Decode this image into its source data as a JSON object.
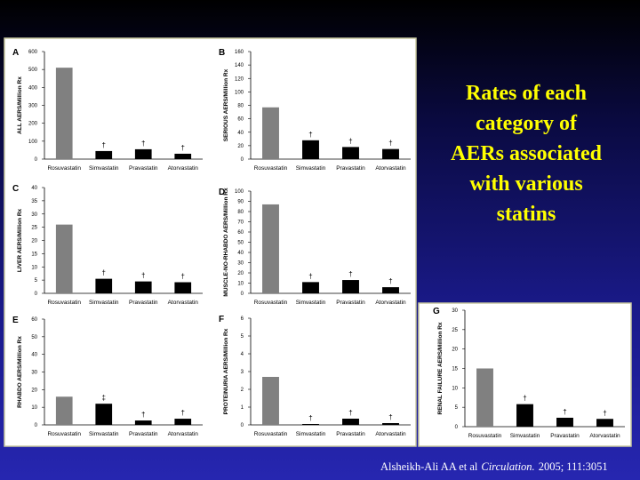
{
  "slide_title": [
    "Rates of each",
    "category of",
    "AERs associated",
    "with various",
    "statins"
  ],
  "citation": [
    "Alsheikh-Ali AA et al",
    "Circulation.",
    "2005; 111:3051"
  ],
  "chart_data": [
    {
      "type": "bar",
      "panel": "A",
      "ylabel": "ALL AERS/Million Rx",
      "categories": [
        "Rosuvastatin",
        "Simvastatin",
        "Pravastatin",
        "Atorvastatin"
      ],
      "values": [
        510,
        45,
        55,
        30
      ],
      "colors": [
        "#808080",
        "#000000",
        "#000000",
        "#000000"
      ],
      "markers": [
        null,
        "†",
        "†",
        "†"
      ],
      "ylim": [
        0,
        600
      ],
      "yticks": [
        0,
        100,
        200,
        300,
        400,
        500,
        600
      ],
      "grid": false
    },
    {
      "type": "bar",
      "panel": "B",
      "ylabel": "SERIOUS AERS/Million Rx",
      "categories": [
        "Rosuvastatin",
        "Simvastatin",
        "Pravastatin",
        "Atorvastatin"
      ],
      "values": [
        77,
        28,
        18,
        15
      ],
      "colors": [
        "#808080",
        "#000000",
        "#000000",
        "#000000"
      ],
      "markers": [
        null,
        "†",
        "†",
        "†"
      ],
      "ylim": [
        0,
        160
      ],
      "yticks": [
        0,
        20,
        40,
        60,
        80,
        100,
        120,
        140,
        160
      ],
      "grid": false
    },
    {
      "type": "bar",
      "panel": "C",
      "ylabel": "LIVER AERS/Million Rx",
      "categories": [
        "Rosuvastatin",
        "Simvastatin",
        "Pravastatin",
        "Atorvastatin"
      ],
      "values": [
        26,
        5.5,
        4.5,
        4.2
      ],
      "colors": [
        "#808080",
        "#000000",
        "#000000",
        "#000000"
      ],
      "markers": [
        null,
        "†",
        "†",
        "†"
      ],
      "ylim": [
        0,
        40
      ],
      "yticks": [
        0,
        5,
        10,
        15,
        20,
        25,
        30,
        35,
        40
      ],
      "grid": false
    },
    {
      "type": "bar",
      "panel": "D",
      "ylabel": "MUSCLE-NO-RHABDO AERS/Million Rx",
      "categories": [
        "Rosuvastatin",
        "Simvastatin",
        "Pravastatin",
        "Atorvastatin"
      ],
      "values": [
        87,
        11,
        13,
        6
      ],
      "colors": [
        "#808080",
        "#000000",
        "#000000",
        "#000000"
      ],
      "markers": [
        null,
        "†",
        "†",
        "†"
      ],
      "ylim": [
        0,
        100
      ],
      "yticks": [
        0,
        10,
        20,
        30,
        40,
        50,
        60,
        70,
        80,
        90,
        100
      ],
      "grid": false
    },
    {
      "type": "bar",
      "panel": "E",
      "ylabel": "RHABDO AERS/Million Rx",
      "categories": [
        "Rosuvastatin",
        "Simvastatin",
        "Pravastatin",
        "Atorvastatin"
      ],
      "values": [
        16,
        12,
        2.5,
        3.5
      ],
      "colors": [
        "#808080",
        "#000000",
        "#000000",
        "#000000"
      ],
      "markers": [
        null,
        "‡",
        "†",
        "†"
      ],
      "ylim": [
        0,
        60
      ],
      "yticks": [
        0,
        10,
        20,
        30,
        40,
        50,
        60
      ],
      "grid": false
    },
    {
      "type": "bar",
      "panel": "F",
      "ylabel": "PROTEINURIA AERS/Million Rx",
      "categories": [
        "Rosuvastatin",
        "Simvastatin",
        "Pravastatin",
        "Atorvastatin"
      ],
      "values": [
        2.7,
        0.05,
        0.35,
        0.1
      ],
      "colors": [
        "#808080",
        "#000000",
        "#000000",
        "#000000"
      ],
      "markers": [
        null,
        "†",
        "†",
        "†"
      ],
      "ylim": [
        0,
        6
      ],
      "yticks": [
        0,
        1,
        2,
        3,
        4,
        5,
        6
      ],
      "grid": false
    },
    {
      "type": "bar",
      "panel": "G",
      "ylabel": "RENAL FAILURE AERS/Million Rx",
      "categories": [
        "Rosuvastatin",
        "Simvastatin",
        "Pravastatin",
        "Atorvastatin"
      ],
      "values": [
        15,
        5.8,
        2.3,
        2
      ],
      "colors": [
        "#808080",
        "#000000",
        "#000000",
        "#000000"
      ],
      "markers": [
        null,
        "†",
        "†",
        "†"
      ],
      "ylim": [
        0,
        30
      ],
      "yticks": [
        0,
        5,
        10,
        15,
        20,
        25,
        30
      ],
      "grid": false
    }
  ]
}
